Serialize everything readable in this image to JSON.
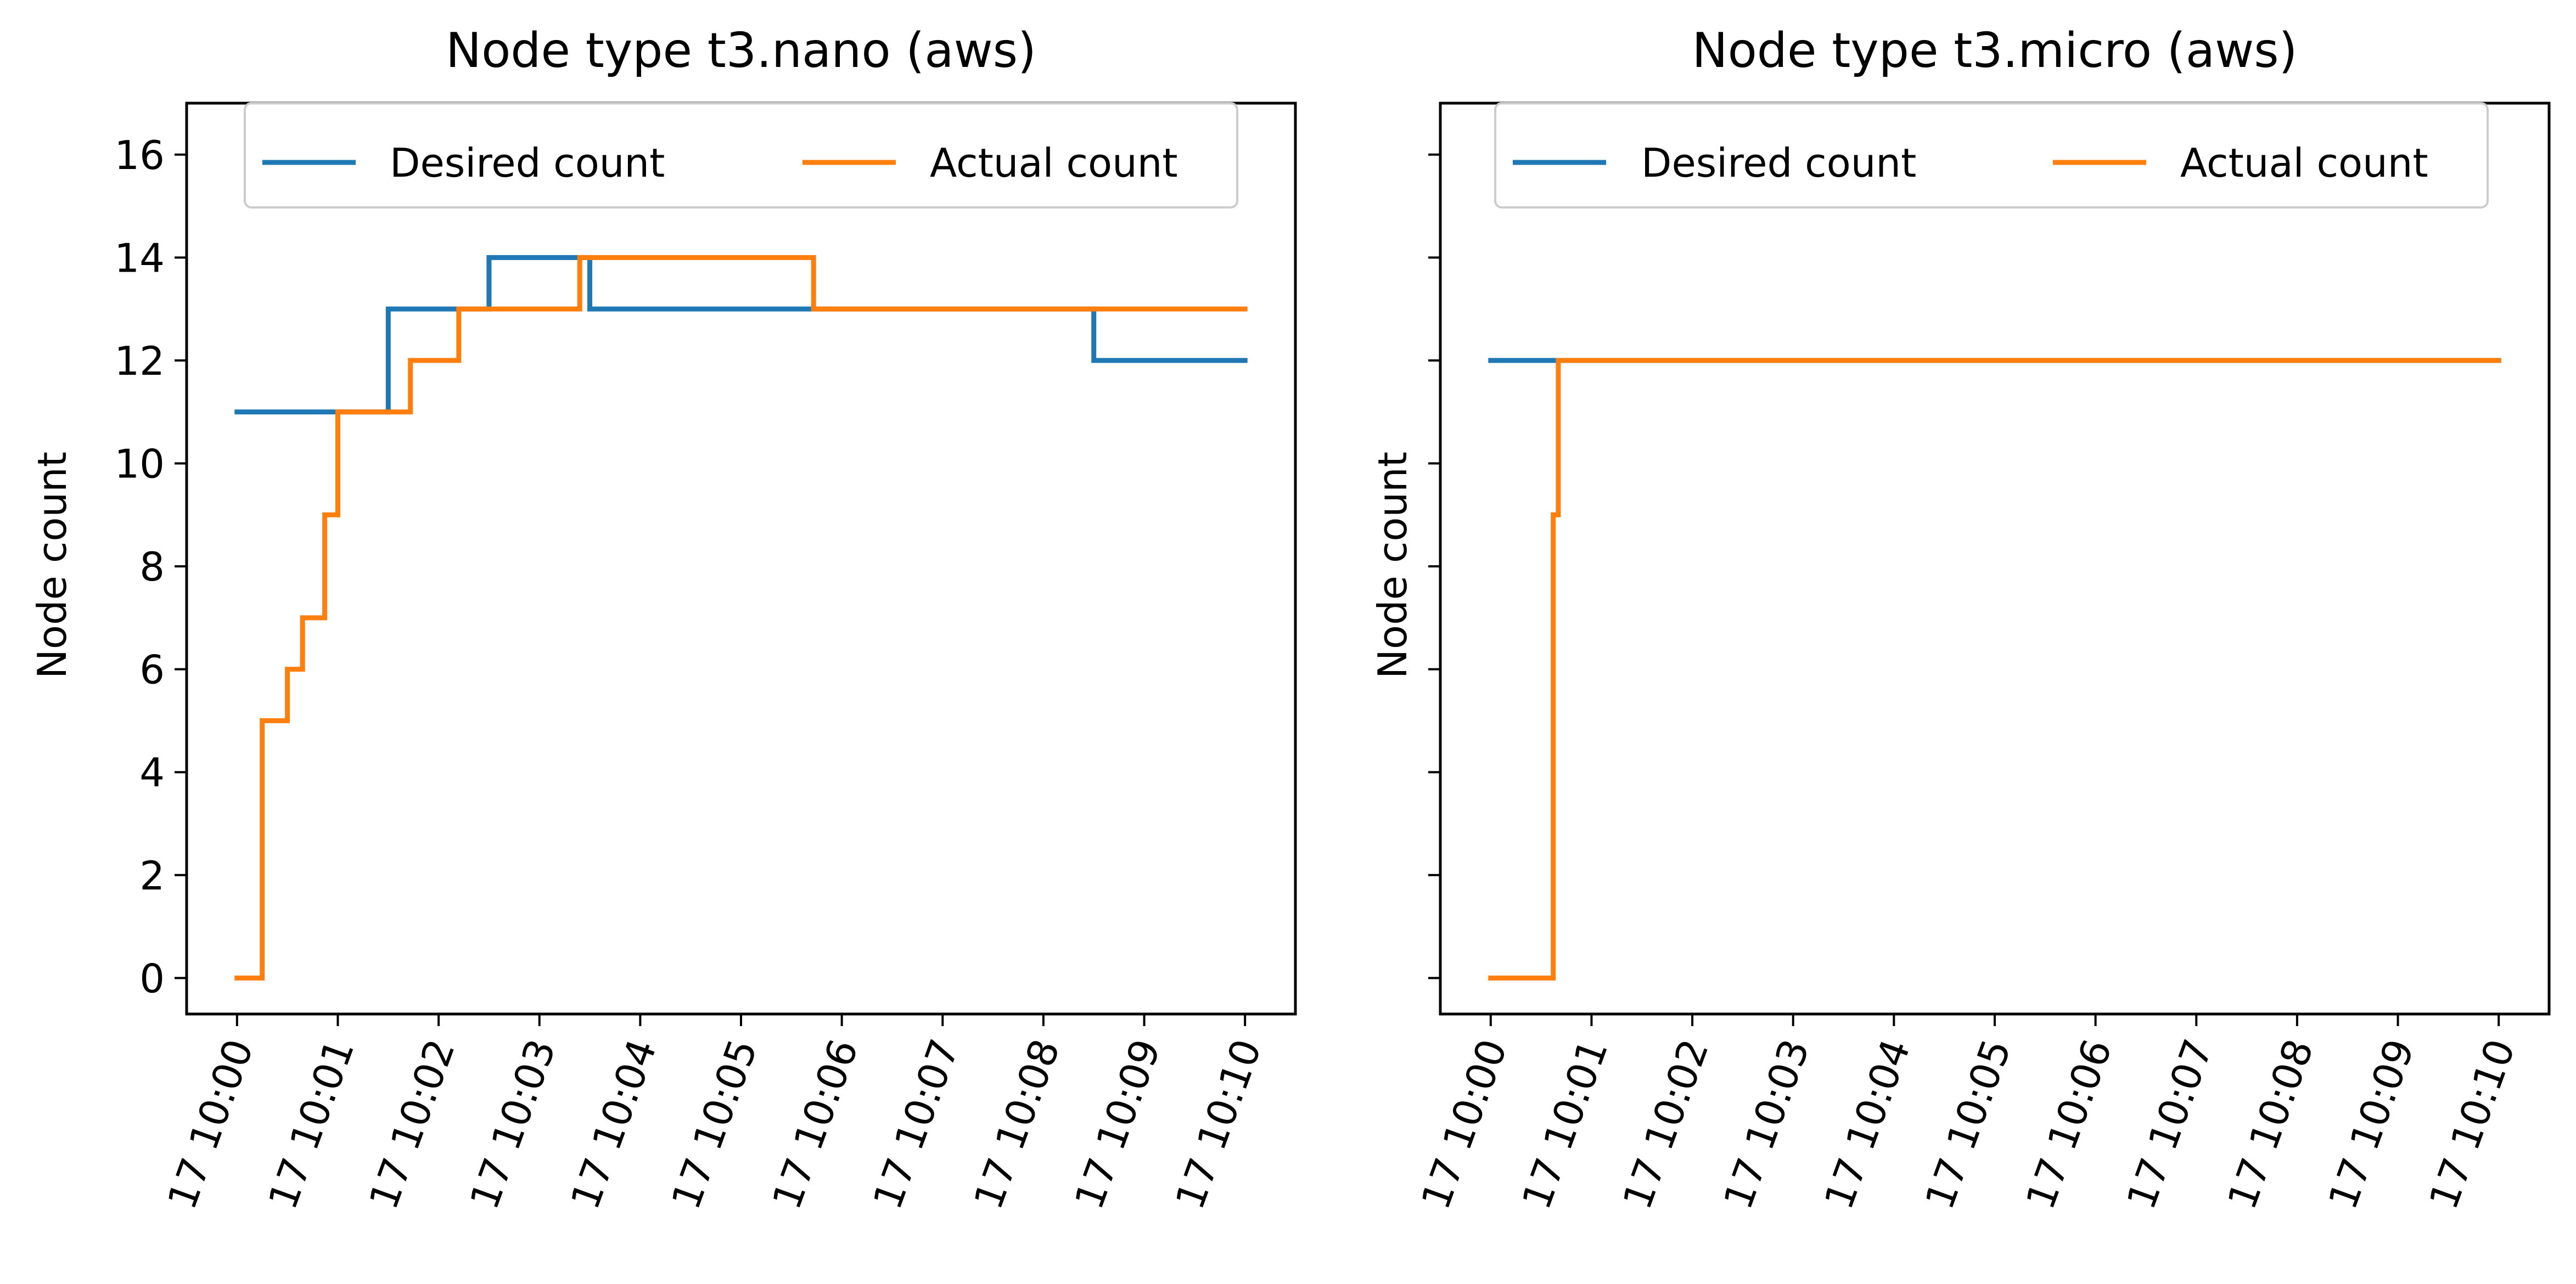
{
  "colors": {
    "desired": "#1f77b4",
    "actual": "#ff7f0e"
  },
  "chart_data": [
    {
      "type": "line",
      "step": "post",
      "title": "Node type t3.nano (aws)",
      "xlabel": "",
      "ylabel": "Node count",
      "x_tick_labels": [
        "17 10:00",
        "17 10:01",
        "17 10:02",
        "17 10:03",
        "17 10:04",
        "17 10:05",
        "17 10:06",
        "17 10:07",
        "17 10:08",
        "17 10:09",
        "17 10:10"
      ],
      "y_tick_labels": [
        "0",
        "2",
        "4",
        "6",
        "8",
        "10",
        "12",
        "14",
        "16"
      ],
      "xlim_minutes": [
        -0.5,
        10.5
      ],
      "ylim": [
        -0.7,
        17
      ],
      "grid": false,
      "legend": {
        "placement": "top-center",
        "columns": 2
      },
      "series": [
        {
          "name": "Desired count",
          "color_key": "desired",
          "points": [
            [
              0,
              11
            ],
            [
              1.5,
              13
            ],
            [
              2.5,
              14
            ],
            [
              3.5,
              13
            ],
            [
              8.5,
              12
            ],
            [
              10,
              12
            ]
          ]
        },
        {
          "name": "Actual count",
          "color_key": "actual",
          "points": [
            [
              0,
              0
            ],
            [
              0.25,
              5
            ],
            [
              0.5,
              6
            ],
            [
              0.65,
              7
            ],
            [
              0.87,
              9
            ],
            [
              1.0,
              11
            ],
            [
              1.72,
              12
            ],
            [
              2.2,
              13
            ],
            [
              3.4,
              14
            ],
            [
              5.72,
              13
            ],
            [
              10,
              13
            ]
          ]
        }
      ]
    },
    {
      "type": "line",
      "step": "post",
      "title": "Node type t3.micro (aws)",
      "xlabel": "",
      "ylabel": "Node count",
      "x_tick_labels": [
        "17 10:00",
        "17 10:01",
        "17 10:02",
        "17 10:03",
        "17 10:04",
        "17 10:05",
        "17 10:06",
        "17 10:07",
        "17 10:08",
        "17 10:09",
        "17 10:10"
      ],
      "y_tick_labels": [],
      "xlim_minutes": [
        -0.5,
        10.5
      ],
      "ylim": [
        -0.7,
        17
      ],
      "grid": false,
      "legend": {
        "placement": "top-center",
        "columns": 2
      },
      "series": [
        {
          "name": "Desired count",
          "color_key": "desired",
          "points": [
            [
              0,
              12
            ],
            [
              10,
              12
            ]
          ]
        },
        {
          "name": "Actual count",
          "color_key": "actual",
          "points": [
            [
              0,
              0
            ],
            [
              0.62,
              9
            ],
            [
              0.67,
              12
            ],
            [
              10,
              12
            ]
          ]
        }
      ]
    }
  ]
}
